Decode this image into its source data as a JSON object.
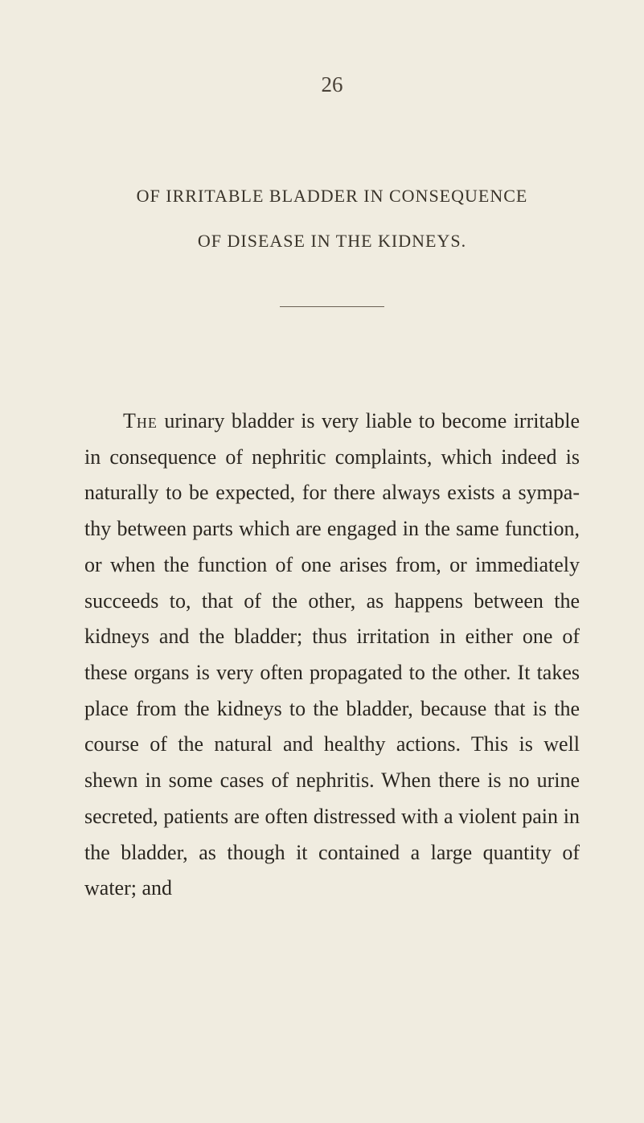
{
  "page": {
    "number": "26",
    "background_color": "#f0ece0",
    "text_color": "#2a2620",
    "heading_color": "#3a342a"
  },
  "heading": {
    "line1": "OF IRRITABLE BLADDER IN CONSEQUENCE",
    "line2": "OF DISEASE IN THE KIDNEYS."
  },
  "body": {
    "first_word": "The",
    "text": " urinary bladder is very liable to be­come irritable in consequence of nephritic complaints, which indeed is naturally to be expected, for there always exists a sympa­thy between parts which are engaged in the same function, or when the function of one arises from, or immediately succeeds to, that of the other, as happens between the kidneys and the bladder; thus irritation in either one of these organs is very often propagated to the other. It takes place from the kidneys to the bladder, because that is the course of the natural and healthy actions. This is well shewn in some cases of nephritis. When there is no urine se­creted, patients are often distressed with a violent pain in the bladder, as though it contained a large quantity of water; and"
  },
  "typography": {
    "body_fontsize": 26,
    "heading_fontsize": 22,
    "page_number_fontsize": 27,
    "line_height": 1.72,
    "font_family": "Georgia, Times New Roman, serif"
  },
  "divider": {
    "width": 130,
    "color": "#6a6055"
  }
}
